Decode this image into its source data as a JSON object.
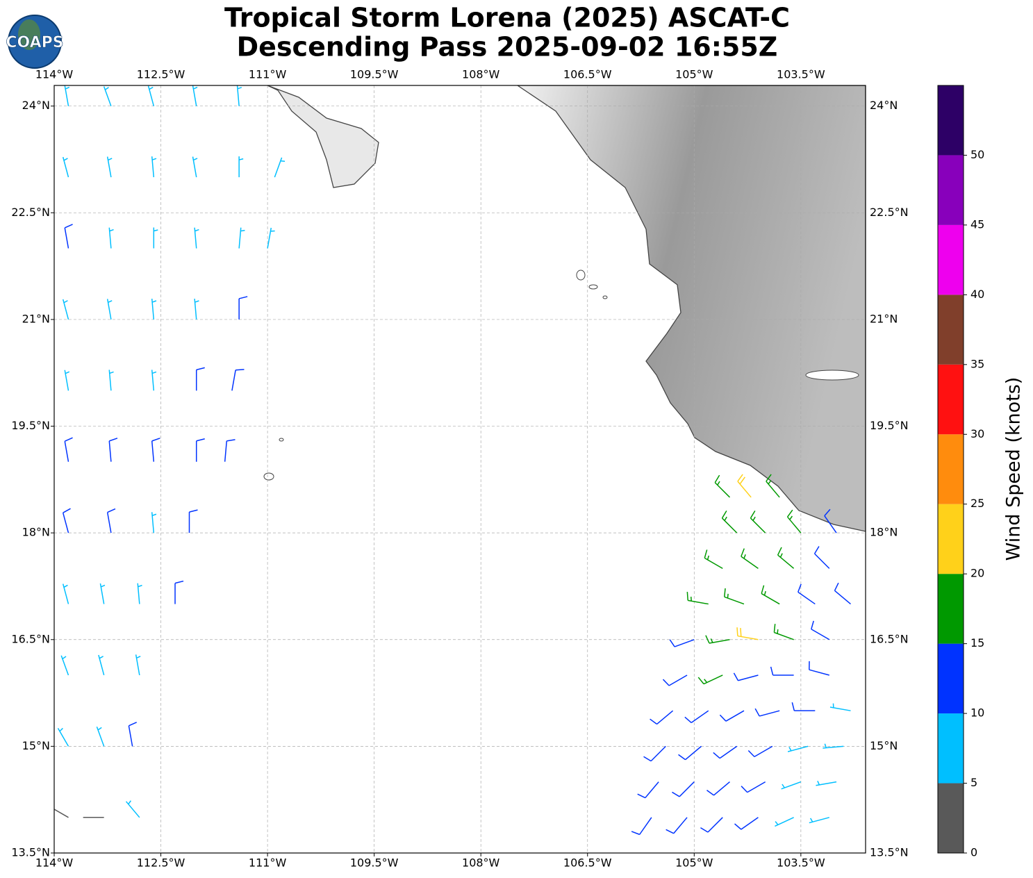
{
  "title": [
    "Tropical Storm Lorena (2025) ASCAT-C",
    "Descending Pass 2025-09-02 16:55Z"
  ],
  "logo": "COAPS",
  "map": {
    "xlim": [
      -114,
      -102.59
    ],
    "ylim": [
      13.5,
      24.29
    ],
    "xticks": [
      {
        "value": -114,
        "label": "114°W"
      },
      {
        "value": -112.5,
        "label": "112.5°W"
      },
      {
        "value": -111,
        "label": "111°W"
      },
      {
        "value": -109.5,
        "label": "109.5°W"
      },
      {
        "value": -108,
        "label": "108°W"
      },
      {
        "value": -106.5,
        "label": "106.5°W"
      },
      {
        "value": -105,
        "label": "105°W"
      },
      {
        "value": -103.5,
        "label": "103.5°W"
      }
    ],
    "yticks": [
      {
        "value": 13.5,
        "label": "13.5°N"
      },
      {
        "value": 15,
        "label": "15°N"
      },
      {
        "value": 16.5,
        "label": "16.5°N"
      },
      {
        "value": 18,
        "label": "18°N"
      },
      {
        "value": 19.5,
        "label": "19.5°N"
      },
      {
        "value": 21,
        "label": "21°N"
      },
      {
        "value": 22.5,
        "label": "22.5°N"
      },
      {
        "value": 24,
        "label": "24°N"
      }
    ],
    "grid": true
  },
  "colorbar": {
    "label": "Wind Speed (knots)",
    "lim": [
      0,
      55
    ],
    "ticks": [
      0,
      5,
      10,
      15,
      20,
      25,
      30,
      35,
      40,
      45,
      50
    ],
    "levels": [
      0,
      5,
      10,
      15,
      20,
      25,
      30,
      35,
      40,
      45,
      50,
      55
    ],
    "colors": [
      "#595959",
      "#00bfff",
      "#0033ff",
      "#009900",
      "#ffd11a",
      "#ff8c0d",
      "#ff1111",
      "#803f2b",
      "#ee00ee",
      "#8800bb",
      "#2d0066"
    ]
  },
  "barbs": [
    [
      -113.8,
      24,
      7,
      350
    ],
    [
      -113.2,
      24,
      7,
      340
    ],
    [
      -112.6,
      24,
      8,
      345
    ],
    [
      -112,
      24,
      8,
      350
    ],
    [
      -111.4,
      24,
      9,
      355
    ],
    [
      -113.8,
      23,
      8,
      345
    ],
    [
      -113.2,
      23,
      8,
      350
    ],
    [
      -112.6,
      23,
      9,
      355
    ],
    [
      -112,
      23,
      8,
      350
    ],
    [
      -111.4,
      23,
      9,
      0
    ],
    [
      -110.9,
      23,
      8,
      20
    ],
    [
      -113.8,
      22,
      12,
      350
    ],
    [
      -113.2,
      22,
      9,
      355
    ],
    [
      -112.6,
      22,
      9,
      0
    ],
    [
      -112,
      22,
      9,
      355
    ],
    [
      -111.4,
      22,
      8,
      5
    ],
    [
      -111,
      22,
      9,
      10
    ],
    [
      -113.8,
      21,
      8,
      345
    ],
    [
      -113.2,
      21,
      9,
      350
    ],
    [
      -112.6,
      21,
      9,
      355
    ],
    [
      -112,
      21,
      9,
      355
    ],
    [
      -111.4,
      21,
      10,
      0
    ],
    [
      -113.8,
      20,
      9,
      350
    ],
    [
      -113.2,
      20,
      9,
      355
    ],
    [
      -112.6,
      20,
      9,
      355
    ],
    [
      -112,
      20,
      11,
      0
    ],
    [
      -111.5,
      20,
      12,
      10
    ],
    [
      -113.8,
      19,
      12,
      350
    ],
    [
      -113.2,
      19,
      12,
      355
    ],
    [
      -112.6,
      19,
      11,
      355
    ],
    [
      -112,
      19,
      12,
      0
    ],
    [
      -111.6,
      19,
      12,
      5
    ],
    [
      -113.8,
      18,
      12,
      345
    ],
    [
      -113.2,
      18,
      11,
      350
    ],
    [
      -112.6,
      18,
      9,
      355
    ],
    [
      -112.1,
      18,
      12,
      0
    ],
    [
      -113.8,
      17,
      9,
      345
    ],
    [
      -113.3,
      17,
      9,
      350
    ],
    [
      -112.8,
      17,
      9,
      355
    ],
    [
      -112.3,
      17,
      12,
      0
    ],
    [
      -113.8,
      16,
      8,
      340
    ],
    [
      -113.3,
      16,
      8,
      345
    ],
    [
      -112.8,
      16,
      8,
      350
    ],
    [
      -113.8,
      15,
      8,
      330
    ],
    [
      -113.3,
      15,
      8,
      340
    ],
    [
      -112.9,
      15,
      12,
      350
    ],
    [
      -113.8,
      14,
      4,
      300
    ],
    [
      -113.3,
      14,
      4,
      270
    ],
    [
      -112.8,
      14,
      7,
      320
    ],
    [
      -104.5,
      18.5,
      17,
      315
    ],
    [
      -104.2,
      18.5,
      22,
      320
    ],
    [
      -103.8,
      18.5,
      17,
      320
    ],
    [
      -104.4,
      18,
      17,
      315
    ],
    [
      -104,
      18,
      17,
      315
    ],
    [
      -103.5,
      18,
      17,
      320
    ],
    [
      -103,
      18,
      12,
      325
    ],
    [
      -104.6,
      17.5,
      17,
      300
    ],
    [
      -104.1,
      17.5,
      17,
      305
    ],
    [
      -103.6,
      17.5,
      17,
      310
    ],
    [
      -103.1,
      17.5,
      13,
      315
    ],
    [
      -104.8,
      17,
      17,
      280
    ],
    [
      -104.3,
      17,
      17,
      290
    ],
    [
      -103.8,
      17,
      17,
      300
    ],
    [
      -103.3,
      17,
      13,
      305
    ],
    [
      -102.8,
      17,
      12,
      310
    ],
    [
      -105,
      16.5,
      12,
      250
    ],
    [
      -104.5,
      16.5,
      17,
      260
    ],
    [
      -104.1,
      16.5,
      22,
      280
    ],
    [
      -103.6,
      16.5,
      17,
      290
    ],
    [
      -103.1,
      16.5,
      12,
      300
    ],
    [
      -105.1,
      16,
      12,
      240
    ],
    [
      -104.6,
      16,
      17,
      245
    ],
    [
      -104.1,
      16,
      13,
      255
    ],
    [
      -103.6,
      16,
      13,
      270
    ],
    [
      -103.1,
      16,
      12,
      285
    ],
    [
      -105.3,
      15.5,
      12,
      230
    ],
    [
      -104.8,
      15.5,
      13,
      235
    ],
    [
      -104.3,
      15.5,
      12,
      240
    ],
    [
      -103.8,
      15.5,
      12,
      255
    ],
    [
      -103.3,
      15.5,
      10,
      270
    ],
    [
      -102.8,
      15.5,
      9,
      280
    ],
    [
      -105.4,
      15,
      12,
      225
    ],
    [
      -104.9,
      15,
      13,
      230
    ],
    [
      -104.4,
      15,
      12,
      235
    ],
    [
      -103.9,
      15,
      11,
      240
    ],
    [
      -103.4,
      15,
      9,
      255
    ],
    [
      -102.9,
      15,
      8,
      265
    ],
    [
      -105.5,
      14.5,
      12,
      220
    ],
    [
      -105,
      14.5,
      12,
      225
    ],
    [
      -104.5,
      14.5,
      11,
      230
    ],
    [
      -104,
      14.5,
      10,
      240
    ],
    [
      -103.5,
      14.5,
      8,
      250
    ],
    [
      -103,
      14.5,
      7,
      260
    ],
    [
      -105.6,
      14,
      12,
      215
    ],
    [
      -105.1,
      14,
      12,
      220
    ],
    [
      -104.6,
      14,
      11,
      225
    ],
    [
      -104.1,
      14,
      10,
      235
    ],
    [
      -103.6,
      14,
      8,
      245
    ],
    [
      -103.1,
      14,
      7,
      255
    ]
  ]
}
